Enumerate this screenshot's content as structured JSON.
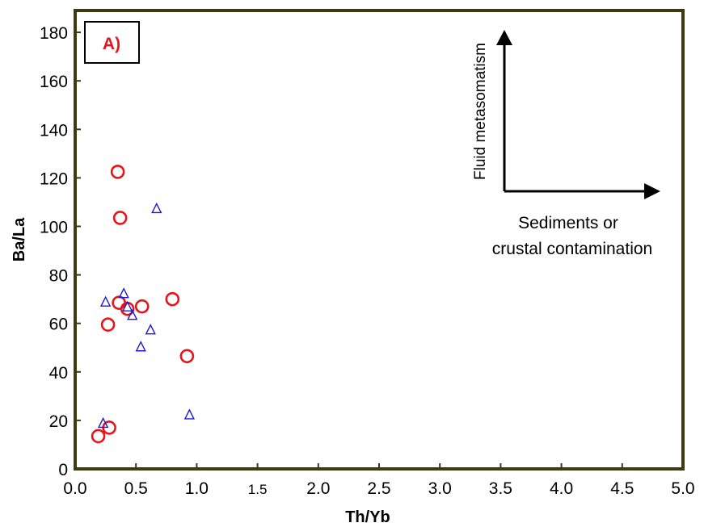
{
  "chart_data": {
    "type": "scatter",
    "title": "",
    "panel_label": "A)",
    "xlabel": "Th/Yb",
    "ylabel": "Ba/La",
    "xlim": [
      0.0,
      5.0
    ],
    "ylim": [
      0,
      190
    ],
    "x_ticks": [
      "0.0",
      "0.5",
      "1.0",
      "1.5",
      "2.0",
      "2.5",
      "3.0",
      "3.5",
      "4.0",
      "4.5",
      "5.0"
    ],
    "y_ticks": [
      "0",
      "20",
      "40",
      "60",
      "80",
      "100",
      "120",
      "140",
      "160",
      "180"
    ],
    "grid": false,
    "series": [
      {
        "marker": "circle",
        "color": "#e8141b",
        "points": [
          {
            "x": 0.35,
            "y": 122.5
          },
          {
            "x": 0.37,
            "y": 103.5
          },
          {
            "x": 0.36,
            "y": 68.5
          },
          {
            "x": 0.43,
            "y": 66.0
          },
          {
            "x": 0.55,
            "y": 67.0
          },
          {
            "x": 0.8,
            "y": 70.0
          },
          {
            "x": 0.27,
            "y": 59.5
          },
          {
            "x": 0.92,
            "y": 46.5
          },
          {
            "x": 0.28,
            "y": 17.0
          },
          {
            "x": 0.19,
            "y": 13.5
          }
        ]
      },
      {
        "marker": "triangle",
        "color": "#1a1ad6",
        "points": [
          {
            "x": 0.67,
            "y": 107.5
          },
          {
            "x": 0.4,
            "y": 72.5
          },
          {
            "x": 0.25,
            "y": 69.0
          },
          {
            "x": 0.43,
            "y": 67.0
          },
          {
            "x": 0.47,
            "y": 63.5
          },
          {
            "x": 0.62,
            "y": 57.5
          },
          {
            "x": 0.54,
            "y": 50.5
          },
          {
            "x": 0.94,
            "y": 22.5
          },
          {
            "x": 0.23,
            "y": 19.0
          }
        ]
      }
    ],
    "annotations": {
      "vertical_arrow_label": "Fluid metasomatism",
      "horizontal_arrow_label_line1": "Sediments or",
      "horizontal_arrow_label_line2": "crustal contamination"
    },
    "colors": {
      "frame": "#3d3a14",
      "panel_label": "#e8141b"
    }
  }
}
